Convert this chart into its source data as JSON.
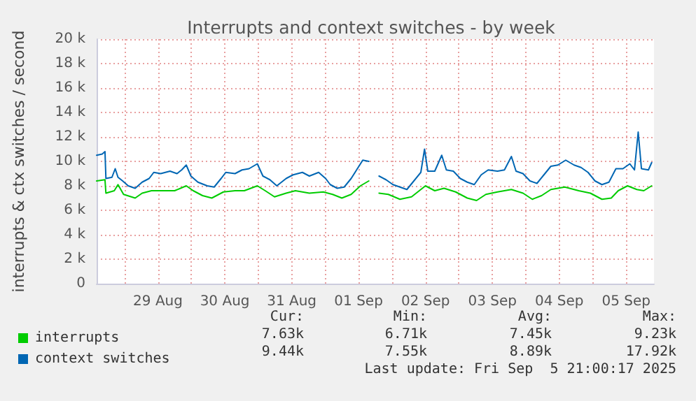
{
  "chart_data": {
    "type": "line",
    "title": "Interrupts and context switches - by week",
    "ylabel": "interrupts & ctx switches / second",
    "xlim": [
      "2025-08-28T14:00",
      "2025-09-05T22:00"
    ],
    "xticks": [
      {
        "value": "2025-08-29T00:00",
        "label": null
      },
      {
        "value": "2025-08-29T12:00",
        "label": "29 Aug"
      },
      {
        "value": "2025-08-30T00:00",
        "label": null
      },
      {
        "value": "2025-08-30T12:00",
        "label": "30 Aug"
      },
      {
        "value": "2025-08-31T00:00",
        "label": null
      },
      {
        "value": "2025-08-31T12:00",
        "label": "31 Aug"
      },
      {
        "value": "2025-09-01T00:00",
        "label": null
      },
      {
        "value": "2025-09-01T12:00",
        "label": "01 Sep"
      },
      {
        "value": "2025-09-02T00:00",
        "label": null
      },
      {
        "value": "2025-09-02T12:00",
        "label": "02 Sep"
      },
      {
        "value": "2025-09-03T00:00",
        "label": null
      },
      {
        "value": "2025-09-03T12:00",
        "label": "03 Sep"
      },
      {
        "value": "2025-09-04T00:00",
        "label": null
      },
      {
        "value": "2025-09-04T12:00",
        "label": "04 Sep"
      },
      {
        "value": "2025-09-05T00:00",
        "label": null
      },
      {
        "value": "2025-09-05T12:00",
        "label": "05 Sep"
      }
    ],
    "ylim": [
      0,
      20000
    ],
    "yticks": [
      0,
      {
        "value": 2000,
        "label": "2 k"
      },
      {
        "value": 4000,
        "label": "4 k"
      },
      {
        "value": 6000,
        "label": "6 k"
      },
      {
        "value": 8000,
        "label": "8 k"
      },
      {
        "value": 10000,
        "label": "10 k"
      },
      {
        "value": 12000,
        "label": "12 k"
      },
      {
        "value": 14000,
        "label": "14 k"
      },
      {
        "value": 16000,
        "label": "16 k"
      },
      {
        "value": 18000,
        "label": "18 k"
      },
      {
        "value": 20000,
        "label": "20 k"
      }
    ],
    "grid": true,
    "legend": "bottom left",
    "marker": "none",
    "line_style": "solid",
    "series": [
      {
        "name": "interrupts",
        "color": "#00cc00",
        "x": [
          "2025-08-28T14:00",
          "2025-08-28T17:00",
          "2025-08-28T17:20",
          "2025-08-28T20:20",
          "2025-08-28T21:40",
          "2025-08-28T23:40",
          "2025-08-29T03:50",
          "2025-08-29T06:20",
          "2025-08-29T09:40",
          "2025-08-29T13:50",
          "2025-08-29T18:00",
          "2025-08-29T22:10",
          "2025-08-30T00:40",
          "2025-08-30T04:00",
          "2025-08-30T07:20",
          "2025-08-30T11:30",
          "2025-08-30T15:40",
          "2025-08-30T19:00",
          "2025-08-30T23:40",
          "2025-08-31T02:30",
          "2025-08-31T05:50",
          "2025-08-31T10:00",
          "2025-08-31T13:20",
          "2025-08-31T18:20",
          "2025-08-31T23:20",
          "2025-09-01T02:40",
          "2025-09-01T06:00",
          "2025-09-01T09:20",
          "2025-09-01T12:40",
          "2025-09-01T15:40",
          "2025-09-01T17:20",
          "2025-09-01T19:20",
          "2025-09-01T22:40",
          "2025-09-02T02:50",
          "2025-09-02T07:00",
          "2025-09-02T10:20",
          "2025-09-02T12:00",
          "2025-09-02T15:20",
          "2025-09-02T18:40",
          "2025-09-02T22:50",
          "2025-09-03T03:00",
          "2025-09-03T06:20",
          "2025-09-03T09:40",
          "2025-09-03T13:50",
          "2025-09-03T18:50",
          "2025-09-03T23:00",
          "2025-09-04T02:20",
          "2025-09-04T05:40",
          "2025-09-04T09:00",
          "2025-09-04T14:00",
          "2025-09-04T19:00",
          "2025-09-04T23:10",
          "2025-09-05T03:20",
          "2025-09-05T06:40",
          "2025-09-05T09:10",
          "2025-09-05T12:30",
          "2025-09-05T15:50",
          "2025-09-05T18:20",
          "2025-09-05T21:10"
        ],
        "values": [
          8400,
          8500,
          7400,
          7600,
          8100,
          7300,
          7000,
          7400,
          7600,
          7600,
          7600,
          8000,
          7600,
          7200,
          7000,
          7500,
          7600,
          7600,
          8000,
          7600,
          7100,
          7400,
          7600,
          7400,
          7500,
          7300,
          7000,
          7300,
          8000,
          8400,
          null,
          7400,
          7300,
          6900,
          7100,
          7700,
          8000,
          7600,
          7800,
          7500,
          7000,
          6800,
          7300,
          7500,
          7700,
          7400,
          6900,
          7200,
          7700,
          7900,
          7600,
          7400,
          6900,
          7000,
          7600,
          8000,
          7700,
          7600,
          8000
        ]
      },
      {
        "name": "context switches",
        "color": "#0066b3",
        "x": [
          "2025-08-28T14:00",
          "2025-08-28T16:00",
          "2025-08-28T17:00",
          "2025-08-28T17:20",
          "2025-08-28T19:30",
          "2025-08-28T20:40",
          "2025-08-28T21:40",
          "2025-08-28T23:20",
          "2025-08-29T01:20",
          "2025-08-29T03:50",
          "2025-08-29T06:20",
          "2025-08-29T08:50",
          "2025-08-29T10:30",
          "2025-08-29T13:00",
          "2025-08-29T16:20",
          "2025-08-29T18:50",
          "2025-08-29T20:30",
          "2025-08-29T22:10",
          "2025-08-29T23:50",
          "2025-08-30T02:20",
          "2025-08-30T05:40",
          "2025-08-30T08:10",
          "2025-08-30T10:40",
          "2025-08-30T12:20",
          "2025-08-30T15:40",
          "2025-08-30T18:10",
          "2025-08-30T20:40",
          "2025-08-30T23:40",
          "2025-08-31T01:40",
          "2025-08-31T04:10",
          "2025-08-31T06:40",
          "2025-08-31T10:00",
          "2025-08-31T12:30",
          "2025-08-31T15:50",
          "2025-08-31T18:20",
          "2025-08-31T21:40",
          "2025-09-01T00:10",
          "2025-09-01T01:50",
          "2025-09-01T04:20",
          "2025-09-01T06:50",
          "2025-09-01T09:20",
          "2025-09-01T11:50",
          "2025-09-01T13:30",
          "2025-09-01T15:40",
          "2025-09-01T17:20",
          "2025-09-01T19:20",
          "2025-09-01T21:50",
          "2025-09-02T00:20",
          "2025-09-02T02:50",
          "2025-09-02T05:20",
          "2025-09-02T07:50",
          "2025-09-02T10:20",
          "2025-09-02T11:40",
          "2025-09-02T12:50",
          "2025-09-02T15:20",
          "2025-09-02T17:50",
          "2025-09-02T19:30",
          "2025-09-02T22:00",
          "2025-09-03T00:30",
          "2025-09-03T03:00",
          "2025-09-03T05:30",
          "2025-09-03T08:00",
          "2025-09-03T10:30",
          "2025-09-03T13:50",
          "2025-09-03T16:20",
          "2025-09-03T18:50",
          "2025-09-03T20:30",
          "2025-09-03T23:00",
          "2025-09-04T01:30",
          "2025-09-04T04:00",
          "2025-09-04T06:30",
          "2025-09-04T09:00",
          "2025-09-04T11:30",
          "2025-09-04T14:20",
          "2025-09-04T17:20",
          "2025-09-04T19:50",
          "2025-09-04T22:20",
          "2025-09-05T00:50",
          "2025-09-05T03:20",
          "2025-09-05T05:50",
          "2025-09-05T08:20",
          "2025-09-05T10:50",
          "2025-09-05T13:20",
          "2025-09-05T15:00",
          "2025-09-05T16:20",
          "2025-09-05T17:30",
          "2025-09-05T20:00",
          "2025-09-05T21:10"
        ],
        "values": [
          10500,
          10600,
          10800,
          8600,
          8700,
          9400,
          8700,
          8400,
          8000,
          7800,
          8300,
          8600,
          9100,
          9000,
          9200,
          9000,
          9300,
          9700,
          8800,
          8300,
          8000,
          7900,
          8600,
          9100,
          9000,
          9300,
          9400,
          9800,
          8800,
          8500,
          8000,
          8600,
          8900,
          9100,
          8800,
          9100,
          8600,
          8100,
          7800,
          7900,
          8600,
          9500,
          10100,
          10000,
          null,
          8800,
          8500,
          8100,
          7900,
          7700,
          8400,
          9100,
          11000,
          9200,
          9200,
          10500,
          9300,
          9200,
          8600,
          8300,
          8100,
          8900,
          9300,
          9200,
          9300,
          10400,
          9200,
          9000,
          8400,
          8200,
          8900,
          9600,
          9700,
          10100,
          9700,
          9500,
          9100,
          8400,
          8100,
          8300,
          9400,
          9400,
          9800,
          9300,
          12400,
          9400,
          9300,
          9900
        ]
      }
    ],
    "annotations": [
      "Cur:",
      "Min:",
      "Avg:",
      "Max:",
      "7.63k",
      "6.71k",
      "7.45k",
      "9.23k",
      "9.44k",
      "7.55k",
      "8.89k",
      "17.92k",
      "Last update: Fri Sep  5 21:00:17 2025"
    ]
  }
}
